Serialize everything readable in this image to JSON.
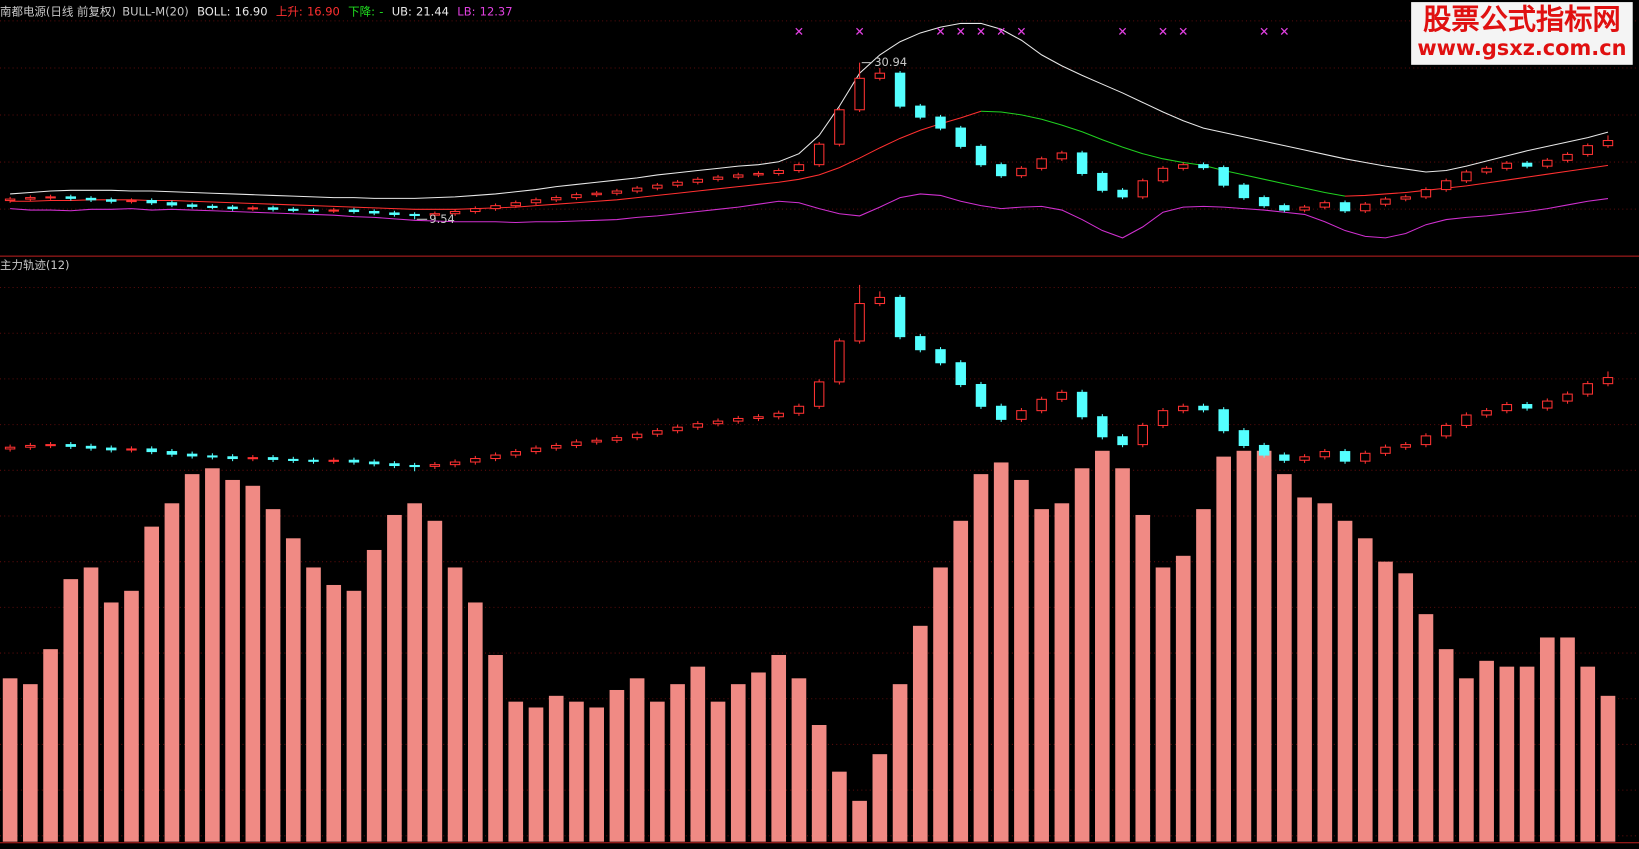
{
  "chart_data": [
    {
      "type": "candlestick",
      "title": "南都电源(日线 前复权)",
      "indicator": "BULL-M(20)",
      "legend": [
        {
          "label": "BOLL:",
          "value": 16.9,
          "value_label": "16.90",
          "color": "#e8e8e8"
        },
        {
          "label": "上升:",
          "value": 16.9,
          "value_label": "16.90",
          "color": "#ff3030"
        },
        {
          "label": "下降:",
          "value": null,
          "value_label": "-",
          "color": "#20e020"
        },
        {
          "label": "UB:",
          "value": 21.44,
          "color": "#e8e8e8"
        },
        {
          "label": "LB:",
          "value": 12.37,
          "color": "#e040e0"
        }
      ],
      "ylim": [
        4.5,
        39.5
      ],
      "up_color": "#ff3232",
      "down_color": "#54ffff",
      "open": [
        12.1,
        12.3,
        12.5,
        12.6,
        12.4,
        12.2,
        12.0,
        12.1,
        11.8,
        11.5,
        11.3,
        11.2,
        11.0,
        11.1,
        10.9,
        10.8,
        10.7,
        10.8,
        10.6,
        10.4,
        10.2,
        10.1,
        10.3,
        10.6,
        11.0,
        11.4,
        11.8,
        12.2,
        12.5,
        12.9,
        13.1,
        13.4,
        13.8,
        14.2,
        14.6,
        15.0,
        15.3,
        15.6,
        15.8,
        16.2,
        17.0,
        19.8,
        24.5,
        28.8,
        29.5,
        25.0,
        23.5,
        22.0,
        19.5,
        17.0,
        15.5,
        16.5,
        17.8,
        18.6,
        15.8,
        13.5,
        12.6,
        14.8,
        16.5,
        17.0,
        16.6,
        14.2,
        12.5,
        11.4,
        10.8,
        11.2,
        11.8,
        10.7,
        11.6,
        12.3,
        12.6,
        13.6,
        14.8,
        16.0,
        16.5,
        17.2,
        16.8,
        17.6,
        18.4,
        19.6
      ],
      "high": [
        12.6,
        12.8,
        12.9,
        12.9,
        12.7,
        12.5,
        12.4,
        12.4,
        12.1,
        11.8,
        11.6,
        11.5,
        11.4,
        11.4,
        11.2,
        11.1,
        11.1,
        11.1,
        10.9,
        10.7,
        10.5,
        10.6,
        10.9,
        11.3,
        11.7,
        12.1,
        12.5,
        12.8,
        13.2,
        13.4,
        13.7,
        14.1,
        14.5,
        14.9,
        15.3,
        15.6,
        15.9,
        16.1,
        16.5,
        17.3,
        20.1,
        24.8,
        30.94,
        30.2,
        29.8,
        25.3,
        23.8,
        22.3,
        19.8,
        17.3,
        16.8,
        18.1,
        18.9,
        18.9,
        16.1,
        13.8,
        15.1,
        16.8,
        17.3,
        17.3,
        16.9,
        14.5,
        12.8,
        11.7,
        11.5,
        12.1,
        12.1,
        11.9,
        12.6,
        12.9,
        13.9,
        15.1,
        16.3,
        16.8,
        17.5,
        17.5,
        17.9,
        18.7,
        19.9,
        21.0
      ],
      "low": [
        11.8,
        12.0,
        12.2,
        12.1,
        11.9,
        11.7,
        11.7,
        11.5,
        11.2,
        11.0,
        10.9,
        10.7,
        10.7,
        10.6,
        10.5,
        10.4,
        10.4,
        10.3,
        10.1,
        9.9,
        9.54,
        9.8,
        10.0,
        10.3,
        10.7,
        11.1,
        11.5,
        11.9,
        12.2,
        12.6,
        12.8,
        13.1,
        13.5,
        13.9,
        14.3,
        14.7,
        15.0,
        15.3,
        15.5,
        15.9,
        16.7,
        19.5,
        24.2,
        28.5,
        24.7,
        23.2,
        21.7,
        19.2,
        16.7,
        15.2,
        15.2,
        16.2,
        17.5,
        15.5,
        13.2,
        12.3,
        12.3,
        14.5,
        16.2,
        16.3,
        13.9,
        12.2,
        11.1,
        10.5,
        10.5,
        10.9,
        10.4,
        10.4,
        11.3,
        12.0,
        12.3,
        13.3,
        14.5,
        15.7,
        16.2,
        16.5,
        16.5,
        17.3,
        18.1,
        19.3
      ],
      "close": [
        12.3,
        12.5,
        12.6,
        12.4,
        12.2,
        12.0,
        12.1,
        11.8,
        11.5,
        11.3,
        11.2,
        11.0,
        11.1,
        10.9,
        10.8,
        10.7,
        10.8,
        10.6,
        10.4,
        10.2,
        10.1,
        10.3,
        10.6,
        11.0,
        11.4,
        11.8,
        12.2,
        12.5,
        12.9,
        13.1,
        13.4,
        13.8,
        14.2,
        14.6,
        15.0,
        15.3,
        15.6,
        15.8,
        16.2,
        17.0,
        19.8,
        24.5,
        28.8,
        29.5,
        25.0,
        23.5,
        22.0,
        19.5,
        17.0,
        15.5,
        16.5,
        17.8,
        18.6,
        15.8,
        13.5,
        12.6,
        14.8,
        16.5,
        17.0,
        16.6,
        14.2,
        12.5,
        11.4,
        10.8,
        11.2,
        11.8,
        10.7,
        11.6,
        12.3,
        12.6,
        13.6,
        14.8,
        16.0,
        16.5,
        17.2,
        16.8,
        17.6,
        18.4,
        19.6,
        20.3
      ],
      "series": [
        {
          "name": "UB",
          "color": "#e8e8e8",
          "values": [
            13.0,
            13.2,
            13.4,
            13.5,
            13.5,
            13.5,
            13.4,
            13.4,
            13.3,
            13.2,
            13.1,
            13.0,
            12.9,
            12.8,
            12.7,
            12.6,
            12.5,
            12.5,
            12.4,
            12.4,
            12.4,
            12.5,
            12.6,
            12.8,
            13.0,
            13.3,
            13.6,
            14.0,
            14.3,
            14.6,
            14.9,
            15.2,
            15.6,
            15.9,
            16.2,
            16.5,
            16.8,
            17.0,
            17.4,
            18.5,
            21.0,
            25.0,
            29.5,
            32.0,
            33.8,
            35.0,
            35.8,
            36.3,
            36.3,
            35.5,
            34.0,
            32.0,
            30.5,
            29.2,
            28.0,
            26.8,
            25.5,
            24.2,
            23.0,
            22.0,
            21.4,
            20.8,
            20.2,
            19.6,
            19.0,
            18.4,
            17.8,
            17.3,
            16.8,
            16.4,
            16.0,
            16.2,
            16.8,
            17.5,
            18.2,
            18.9,
            19.5,
            20.1,
            20.7,
            21.44
          ]
        },
        {
          "name": "上升",
          "color": "#ff3030",
          "values": [
            12.0,
            12.0,
            12.1,
            12.1,
            12.2,
            12.2,
            12.2,
            12.1,
            12.1,
            12.0,
            11.9,
            11.8,
            11.7,
            11.6,
            11.5,
            11.4,
            11.3,
            11.2,
            11.1,
            11.0,
            10.9,
            10.9,
            10.9,
            11.0,
            11.1,
            11.2,
            11.4,
            11.6,
            11.8,
            12.0,
            12.2,
            12.5,
            12.8,
            13.1,
            13.4,
            13.7,
            14.0,
            14.3,
            14.6,
            15.0,
            15.6,
            16.6,
            17.9,
            19.3,
            20.6,
            21.7,
            22.6,
            23.4,
            24.3,
            null,
            null,
            null,
            null,
            null,
            null,
            null,
            null,
            null,
            null,
            null,
            null,
            null,
            null,
            null,
            null,
            null,
            12.7,
            12.8,
            13.0,
            13.2,
            13.5,
            13.8,
            14.1,
            14.5,
            14.9,
            15.3,
            15.7,
            16.1,
            16.5,
            16.9
          ]
        },
        {
          "name": "下降",
          "color": "#20d020",
          "values": [
            null,
            null,
            null,
            null,
            null,
            null,
            null,
            null,
            null,
            null,
            null,
            null,
            null,
            null,
            null,
            null,
            null,
            null,
            null,
            null,
            null,
            null,
            null,
            null,
            null,
            null,
            null,
            null,
            null,
            null,
            null,
            null,
            null,
            null,
            null,
            null,
            null,
            null,
            null,
            null,
            null,
            null,
            null,
            null,
            null,
            null,
            null,
            null,
            24.3,
            24.2,
            23.8,
            23.2,
            22.4,
            21.5,
            20.4,
            19.4,
            18.5,
            17.8,
            17.3,
            16.9,
            16.2,
            15.6,
            15.0,
            14.4,
            13.8,
            13.2,
            12.7,
            null,
            null,
            null,
            null,
            null,
            null,
            null,
            null,
            null,
            null,
            null,
            null,
            null
          ]
        },
        {
          "name": "LB",
          "color": "#d030d0",
          "values": [
            11.0,
            10.8,
            10.8,
            10.7,
            10.9,
            10.9,
            11.0,
            10.8,
            10.9,
            10.8,
            10.7,
            10.6,
            10.5,
            10.4,
            10.3,
            10.2,
            10.1,
            9.9,
            9.8,
            9.6,
            9.4,
            9.3,
            9.2,
            9.2,
            9.2,
            9.1,
            9.2,
            9.2,
            9.3,
            9.4,
            9.5,
            9.8,
            10.0,
            10.3,
            10.6,
            10.9,
            11.2,
            11.6,
            12.0,
            11.8,
            11.0,
            10.3,
            10.0,
            11.2,
            12.5,
            13.0,
            12.8,
            12.0,
            11.4,
            11.0,
            11.2,
            11.3,
            10.8,
            9.5,
            8.0,
            7.0,
            8.5,
            10.5,
            11.2,
            11.3,
            11.2,
            11.0,
            10.8,
            10.5,
            10.2,
            9.2,
            8.0,
            7.2,
            7.0,
            7.6,
            8.8,
            9.5,
            9.8,
            10.0,
            10.3,
            10.6,
            11.0,
            11.5,
            12.0,
            12.37
          ]
        }
      ],
      "annotations": [
        {
          "index": 42,
          "value": 30.94
        },
        {
          "index": 20,
          "value": 9.54
        }
      ],
      "signals": {
        "color": "#e040e0",
        "x": [
          39,
          42,
          46,
          47,
          48,
          49,
          50,
          55,
          57,
          58,
          62,
          63
        ]
      }
    },
    {
      "type": "bar",
      "title": "主力轨迹(12)",
      "color": "#f08a84",
      "ylim": [
        0,
        100
      ],
      "candle_ylim": [
        -33,
        34
      ],
      "values": [
        28,
        27,
        33,
        45,
        47,
        41,
        43,
        54,
        58,
        63,
        64,
        62,
        61,
        57,
        52,
        47,
        44,
        43,
        50,
        56,
        58,
        55,
        47,
        41,
        32,
        24,
        23,
        25,
        24,
        23,
        26,
        28,
        24,
        27,
        30,
        24,
        27,
        29,
        32,
        28,
        20,
        12,
        7,
        15,
        27,
        37,
        47,
        55,
        63,
        65,
        62,
        57,
        58,
        64,
        67,
        64,
        56,
        47,
        49,
        57,
        66,
        67,
        67,
        63,
        59,
        58,
        55,
        52,
        48,
        46,
        39,
        33,
        28,
        31,
        30,
        30,
        35,
        35,
        30,
        25
      ]
    }
  ],
  "watermark": {
    "title": "股票公式指标网",
    "url": "www.gsxz.com.cn"
  }
}
